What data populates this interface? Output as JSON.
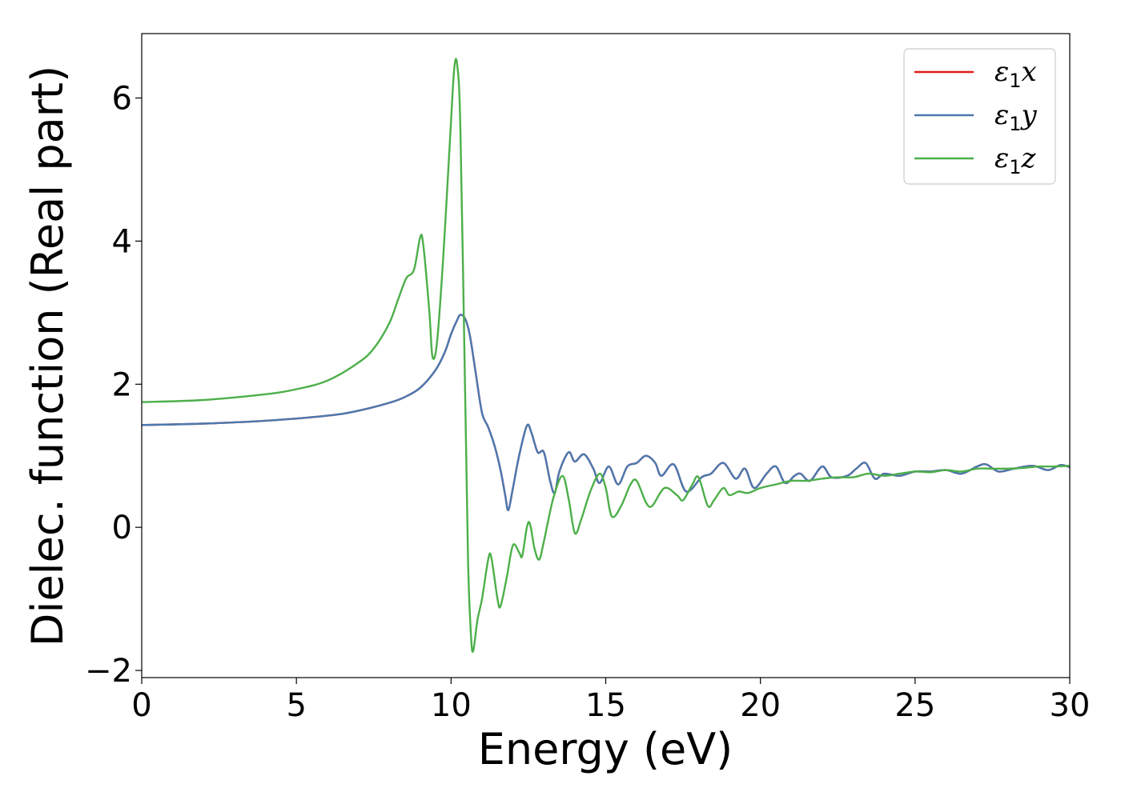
{
  "chart_data": {
    "type": "line",
    "xlabel": "Energy (eV)",
    "ylabel": "Dielec. function (Real part)",
    "xlim": [
      0,
      30
    ],
    "ylim": [
      -2.1,
      6.9
    ],
    "xticks": [
      0,
      5,
      10,
      15,
      20,
      25,
      30
    ],
    "xtick_labels": [
      "0",
      "5",
      "10",
      "15",
      "20",
      "25",
      "30"
    ],
    "yticks": [
      -2,
      0,
      2,
      4,
      6
    ],
    "ytick_labels": [
      "−2",
      "0",
      "2",
      "4",
      "6"
    ],
    "grid": false,
    "legend_position": "top-right",
    "series": [
      {
        "name": "ε1x",
        "legend_symbol": "ε",
        "legend_sub": "1",
        "legend_var": "x",
        "color": "#e41a1c",
        "points": [
          [
            0,
            1.43
          ],
          [
            2,
            1.45
          ],
          [
            4,
            1.49
          ],
          [
            6,
            1.56
          ],
          [
            7,
            1.63
          ],
          [
            8,
            1.74
          ],
          [
            8.5,
            1.82
          ],
          [
            9,
            1.95
          ],
          [
            9.5,
            2.2
          ],
          [
            9.8,
            2.45
          ],
          [
            10.0,
            2.7
          ],
          [
            10.2,
            2.9
          ],
          [
            10.3,
            2.97
          ],
          [
            10.45,
            2.92
          ],
          [
            10.6,
            2.7
          ],
          [
            10.8,
            2.15
          ],
          [
            11.0,
            1.6
          ],
          [
            11.2,
            1.4
          ],
          [
            11.4,
            1.15
          ],
          [
            11.6,
            0.8
          ],
          [
            11.75,
            0.45
          ],
          [
            11.85,
            0.24
          ],
          [
            12.0,
            0.55
          ],
          [
            12.2,
            1.0
          ],
          [
            12.45,
            1.42
          ],
          [
            12.6,
            1.32
          ],
          [
            12.8,
            1.05
          ],
          [
            13.0,
            1.05
          ],
          [
            13.2,
            0.65
          ],
          [
            13.35,
            0.48
          ],
          [
            13.5,
            0.78
          ],
          [
            13.8,
            1.05
          ],
          [
            14.0,
            0.92
          ],
          [
            14.3,
            1.02
          ],
          [
            14.6,
            0.82
          ],
          [
            14.8,
            0.62
          ],
          [
            15.1,
            0.85
          ],
          [
            15.4,
            0.6
          ],
          [
            15.7,
            0.85
          ],
          [
            16.0,
            0.9
          ],
          [
            16.3,
            1.0
          ],
          [
            16.6,
            0.9
          ],
          [
            16.8,
            0.72
          ],
          [
            17.2,
            0.88
          ],
          [
            17.6,
            0.5
          ],
          [
            18.1,
            0.7
          ],
          [
            18.4,
            0.75
          ],
          [
            18.8,
            0.9
          ],
          [
            19.2,
            0.68
          ],
          [
            19.5,
            0.82
          ],
          [
            19.8,
            0.55
          ],
          [
            20.2,
            0.75
          ],
          [
            20.5,
            0.85
          ],
          [
            20.8,
            0.62
          ],
          [
            21.1,
            0.72
          ],
          [
            21.3,
            0.75
          ],
          [
            21.6,
            0.65
          ],
          [
            22.0,
            0.85
          ],
          [
            22.3,
            0.7
          ],
          [
            22.8,
            0.72
          ],
          [
            23.1,
            0.82
          ],
          [
            23.4,
            0.9
          ],
          [
            23.7,
            0.68
          ],
          [
            24.0,
            0.75
          ],
          [
            24.5,
            0.72
          ],
          [
            25.0,
            0.78
          ],
          [
            25.5,
            0.78
          ],
          [
            26.0,
            0.8
          ],
          [
            26.5,
            0.75
          ],
          [
            27.0,
            0.85
          ],
          [
            27.3,
            0.88
          ],
          [
            27.7,
            0.78
          ],
          [
            28.2,
            0.82
          ],
          [
            28.8,
            0.86
          ],
          [
            29.3,
            0.8
          ],
          [
            29.7,
            0.87
          ],
          [
            30,
            0.84
          ]
        ]
      },
      {
        "name": "ε1y",
        "legend_symbol": "ε",
        "legend_sub": "1",
        "legend_var": "y",
        "color": "#4a79b0",
        "points": [
          [
            0,
            1.43
          ],
          [
            2,
            1.45
          ],
          [
            4,
            1.49
          ],
          [
            6,
            1.56
          ],
          [
            7,
            1.63
          ],
          [
            8,
            1.74
          ],
          [
            8.5,
            1.82
          ],
          [
            9,
            1.95
          ],
          [
            9.5,
            2.2
          ],
          [
            9.8,
            2.45
          ],
          [
            10.0,
            2.7
          ],
          [
            10.2,
            2.9
          ],
          [
            10.3,
            2.97
          ],
          [
            10.45,
            2.92
          ],
          [
            10.6,
            2.7
          ],
          [
            10.8,
            2.15
          ],
          [
            11.0,
            1.6
          ],
          [
            11.2,
            1.4
          ],
          [
            11.4,
            1.15
          ],
          [
            11.6,
            0.8
          ],
          [
            11.75,
            0.45
          ],
          [
            11.85,
            0.24
          ],
          [
            12.0,
            0.55
          ],
          [
            12.2,
            1.0
          ],
          [
            12.45,
            1.42
          ],
          [
            12.6,
            1.32
          ],
          [
            12.8,
            1.05
          ],
          [
            13.0,
            1.05
          ],
          [
            13.2,
            0.65
          ],
          [
            13.35,
            0.48
          ],
          [
            13.5,
            0.78
          ],
          [
            13.8,
            1.05
          ],
          [
            14.0,
            0.92
          ],
          [
            14.3,
            1.02
          ],
          [
            14.6,
            0.82
          ],
          [
            14.8,
            0.62
          ],
          [
            15.1,
            0.85
          ],
          [
            15.4,
            0.6
          ],
          [
            15.7,
            0.85
          ],
          [
            16.0,
            0.9
          ],
          [
            16.3,
            1.0
          ],
          [
            16.6,
            0.9
          ],
          [
            16.8,
            0.72
          ],
          [
            17.2,
            0.88
          ],
          [
            17.6,
            0.5
          ],
          [
            18.1,
            0.7
          ],
          [
            18.4,
            0.75
          ],
          [
            18.8,
            0.9
          ],
          [
            19.2,
            0.68
          ],
          [
            19.5,
            0.82
          ],
          [
            19.8,
            0.55
          ],
          [
            20.2,
            0.75
          ],
          [
            20.5,
            0.85
          ],
          [
            20.8,
            0.62
          ],
          [
            21.1,
            0.72
          ],
          [
            21.3,
            0.75
          ],
          [
            21.6,
            0.65
          ],
          [
            22.0,
            0.85
          ],
          [
            22.3,
            0.7
          ],
          [
            22.8,
            0.72
          ],
          [
            23.1,
            0.82
          ],
          [
            23.4,
            0.9
          ],
          [
            23.7,
            0.68
          ],
          [
            24.0,
            0.75
          ],
          [
            24.5,
            0.72
          ],
          [
            25.0,
            0.78
          ],
          [
            25.5,
            0.78
          ],
          [
            26.0,
            0.8
          ],
          [
            26.5,
            0.75
          ],
          [
            27.0,
            0.85
          ],
          [
            27.3,
            0.88
          ],
          [
            27.7,
            0.78
          ],
          [
            28.2,
            0.82
          ],
          [
            28.8,
            0.86
          ],
          [
            29.3,
            0.8
          ],
          [
            29.7,
            0.87
          ],
          [
            30,
            0.84
          ]
        ]
      },
      {
        "name": "ε1z",
        "legend_symbol": "ε",
        "legend_sub": "1",
        "legend_var": "z",
        "color": "#4daf4a",
        "points": [
          [
            0,
            1.75
          ],
          [
            2,
            1.78
          ],
          [
            4,
            1.86
          ],
          [
            5,
            1.93
          ],
          [
            6,
            2.05
          ],
          [
            7,
            2.3
          ],
          [
            7.5,
            2.5
          ],
          [
            8,
            2.85
          ],
          [
            8.3,
            3.2
          ],
          [
            8.55,
            3.48
          ],
          [
            8.8,
            3.6
          ],
          [
            9.0,
            4.05
          ],
          [
            9.1,
            3.95
          ],
          [
            9.3,
            3.0
          ],
          [
            9.4,
            2.38
          ],
          [
            9.55,
            2.6
          ],
          [
            9.75,
            3.8
          ],
          [
            9.95,
            5.3
          ],
          [
            10.1,
            6.4
          ],
          [
            10.2,
            6.45
          ],
          [
            10.3,
            5.6
          ],
          [
            10.45,
            2.0
          ],
          [
            10.55,
            -0.5
          ],
          [
            10.65,
            -1.55
          ],
          [
            10.72,
            -1.72
          ],
          [
            10.85,
            -1.3
          ],
          [
            11.0,
            -1.0
          ],
          [
            11.2,
            -0.45
          ],
          [
            11.3,
            -0.42
          ],
          [
            11.5,
            -1.0
          ],
          [
            11.6,
            -1.1
          ],
          [
            11.8,
            -0.7
          ],
          [
            12.0,
            -0.25
          ],
          [
            12.2,
            -0.35
          ],
          [
            12.3,
            -0.4
          ],
          [
            12.45,
            0.0
          ],
          [
            12.55,
            0.05
          ],
          [
            12.7,
            -0.3
          ],
          [
            12.85,
            -0.45
          ],
          [
            13.0,
            -0.2
          ],
          [
            13.3,
            0.4
          ],
          [
            13.6,
            0.72
          ],
          [
            13.8,
            0.4
          ],
          [
            14.0,
            -0.08
          ],
          [
            14.2,
            0.1
          ],
          [
            14.5,
            0.5
          ],
          [
            14.8,
            0.75
          ],
          [
            15.0,
            0.55
          ],
          [
            15.2,
            0.15
          ],
          [
            15.5,
            0.3
          ],
          [
            15.8,
            0.6
          ],
          [
            16.0,
            0.65
          ],
          [
            16.3,
            0.35
          ],
          [
            16.5,
            0.3
          ],
          [
            16.9,
            0.55
          ],
          [
            17.3,
            0.45
          ],
          [
            17.5,
            0.38
          ],
          [
            17.8,
            0.6
          ],
          [
            18.0,
            0.7
          ],
          [
            18.3,
            0.3
          ],
          [
            18.5,
            0.38
          ],
          [
            18.8,
            0.55
          ],
          [
            19.0,
            0.45
          ],
          [
            19.3,
            0.5
          ],
          [
            19.6,
            0.48
          ],
          [
            20.0,
            0.55
          ],
          [
            20.5,
            0.6
          ],
          [
            21.0,
            0.65
          ],
          [
            21.5,
            0.65
          ],
          [
            22.0,
            0.68
          ],
          [
            22.5,
            0.7
          ],
          [
            23.0,
            0.7
          ],
          [
            23.5,
            0.75
          ],
          [
            24.0,
            0.72
          ],
          [
            24.5,
            0.75
          ],
          [
            25.0,
            0.78
          ],
          [
            25.5,
            0.77
          ],
          [
            26.0,
            0.8
          ],
          [
            26.5,
            0.78
          ],
          [
            27.0,
            0.82
          ],
          [
            27.5,
            0.82
          ],
          [
            28.0,
            0.82
          ],
          [
            28.5,
            0.83
          ],
          [
            29.0,
            0.85
          ],
          [
            29.5,
            0.85
          ],
          [
            30,
            0.86
          ]
        ]
      }
    ]
  }
}
